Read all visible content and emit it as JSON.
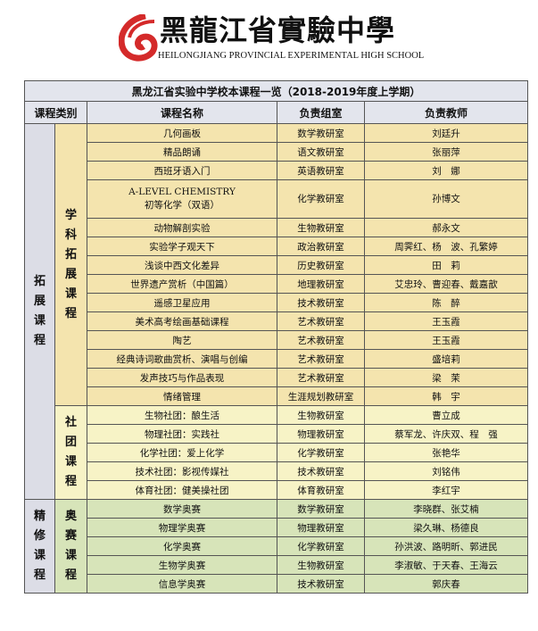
{
  "header": {
    "school_name_cn": "黑龍江省實驗中學",
    "school_name_en": "HEILONGJIANG PROVINCIAL EXPERIMENTAL HIGH SCHOOL",
    "logo_color": "#d42a2a"
  },
  "table": {
    "title": "黑龙江省实验中学校本课程一览（2018-2019年度上学期）",
    "columns": [
      "课程类别",
      "课程名称",
      "负责组室",
      "负责教师"
    ],
    "categories": [
      {
        "name": "拓展课程",
        "groups": [
          0,
          1
        ]
      },
      {
        "name": "精修课程",
        "groups": [
          2
        ]
      }
    ],
    "groups": [
      {
        "name": "学科拓展课程",
        "color": "#f4e4ae",
        "rows": [
          {
            "course": "几何画板",
            "dept": "数学教研室",
            "teacher": "刘廷升"
          },
          {
            "course": "精品朗诵",
            "dept": "语文教研室",
            "teacher": "张丽萍"
          },
          {
            "course": "西班牙语入门",
            "dept": "英语教研室",
            "teacher": "刘　娜"
          },
          {
            "course": "A-LEVEL CHEMISTRY\n初等化学（双语）",
            "dept": "化学教研室",
            "teacher": "孙博文"
          },
          {
            "course": "动物解剖实验",
            "dept": "生物教研室",
            "teacher": "郝永文"
          },
          {
            "course": "实验学子观天下",
            "dept": "政治教研室",
            "teacher": "周霁红、杨　波、孔繁婷"
          },
          {
            "course": "浅谈中西文化差异",
            "dept": "历史教研室",
            "teacher": "田　莉"
          },
          {
            "course": "世界遗产赏析（中国篇）",
            "dept": "地理教研室",
            "teacher": "艾忠玲、曹迎春、戴嘉歆"
          },
          {
            "course": "遥感卫星应用",
            "dept": "技术教研室",
            "teacher": "陈　醉"
          },
          {
            "course": "美术高考绘画基础课程",
            "dept": "艺术教研室",
            "teacher": "王玉霞"
          },
          {
            "course": "陶艺",
            "dept": "艺术教研室",
            "teacher": "王玉霞"
          },
          {
            "course": "经典诗词歌曲赏析、演唱与创编",
            "dept": "艺术教研室",
            "teacher": "盛培莉"
          },
          {
            "course": "发声技巧与作品表现",
            "dept": "艺术教研室",
            "teacher": "梁　茉"
          },
          {
            "course": "情绪管理",
            "dept": "生涯规划教研室",
            "teacher": "韩　宇"
          }
        ]
      },
      {
        "name": "社团课程",
        "color": "#f7f3c6",
        "rows": [
          {
            "course": "生物社团：酿生活",
            "dept": "生物教研室",
            "teacher": "曹立成"
          },
          {
            "course": "物理社团：实践社",
            "dept": "物理教研室",
            "teacher": "蔡军龙、许庆双、程　强"
          },
          {
            "course": "化学社团：爱上化学",
            "dept": "化学教研室",
            "teacher": "张艳华"
          },
          {
            "course": "技术社团：影视传媒社",
            "dept": "技术教研室",
            "teacher": "刘铭伟"
          },
          {
            "course": "体育社团：健美操社团",
            "dept": "体育教研室",
            "teacher": "李红宇"
          }
        ]
      },
      {
        "name": "奥赛课程",
        "color": "#d7e4b9",
        "rows": [
          {
            "course": "数学奥赛",
            "dept": "数学教研室",
            "teacher": "李晓群、张艾楠"
          },
          {
            "course": "物理学奥赛",
            "dept": "物理教研室",
            "teacher": "梁久琳、杨德良"
          },
          {
            "course": "化学奥赛",
            "dept": "化学教研室",
            "teacher": "孙洪波、路明昕、郭进民"
          },
          {
            "course": "生物学奥赛",
            "dept": "生物教研室",
            "teacher": "李淑敏、于天春、王海云"
          },
          {
            "course": "信息学奥赛",
            "dept": "技术教研室",
            "teacher": "郭庆春"
          }
        ]
      }
    ]
  }
}
